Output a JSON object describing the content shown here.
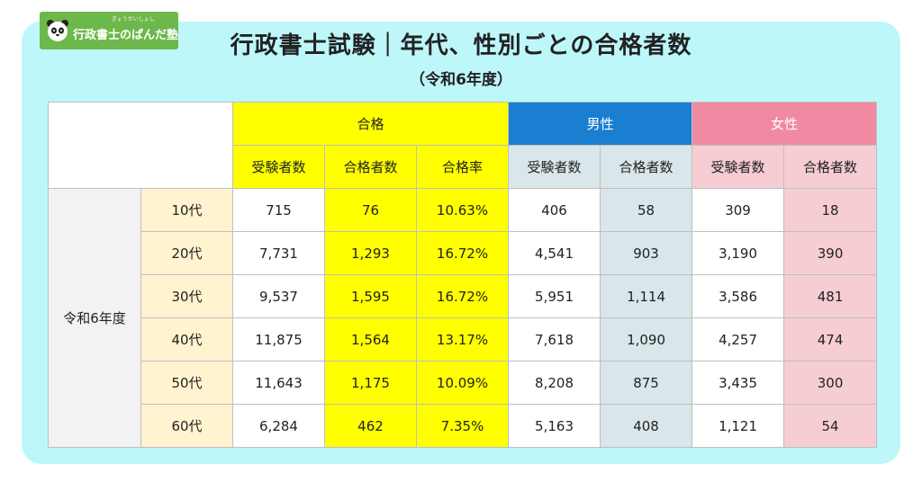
{
  "logo": {
    "ruby": "ぎょうせいしょし",
    "name": "行政書士のぱんだ塾",
    "icon": "panda-icon"
  },
  "title": "行政書士試験｜年代、性別ごとの合格者数",
  "subtitle": "（令和6年度）",
  "table": {
    "groups": {
      "pass": "合格",
      "male": "男性",
      "female": "女性"
    },
    "subheaders": {
      "examinees": "受験者数",
      "passers": "合格者数",
      "rate": "合格率",
      "male_examinees": "受験者数",
      "male_passers": "合格者数",
      "female_examinees": "受験者数",
      "female_passers": "合格者数"
    },
    "year": "令和6年度",
    "rows": [
      {
        "age": "10代",
        "examinees": "715",
        "passers": "76",
        "rate": "10.63%",
        "male_examinees": "406",
        "male_passers": "58",
        "female_examinees": "309",
        "female_passers": "18"
      },
      {
        "age": "20代",
        "examinees": "7,731",
        "passers": "1,293",
        "rate": "16.72%",
        "male_examinees": "4,541",
        "male_passers": "903",
        "female_examinees": "3,190",
        "female_passers": "390"
      },
      {
        "age": "30代",
        "examinees": "9,537",
        "passers": "1,595",
        "rate": "16.72%",
        "male_examinees": "5,951",
        "male_passers": "1,114",
        "female_examinees": "3,586",
        "female_passers": "481"
      },
      {
        "age": "40代",
        "examinees": "11,875",
        "passers": "1,564",
        "rate": "13.17%",
        "male_examinees": "7,618",
        "male_passers": "1,090",
        "female_examinees": "4,257",
        "female_passers": "474"
      },
      {
        "age": "50代",
        "examinees": "11,643",
        "passers": "1,175",
        "rate": "10.09%",
        "male_examinees": "8,208",
        "male_passers": "875",
        "female_examinees": "3,435",
        "female_passers": "300"
      },
      {
        "age": "60代",
        "examinees": "6,284",
        "passers": "462",
        "rate": "7.35%",
        "male_examinees": "5,163",
        "male_passers": "408",
        "female_examinees": "1,121",
        "female_passers": "54"
      }
    ]
  }
}
